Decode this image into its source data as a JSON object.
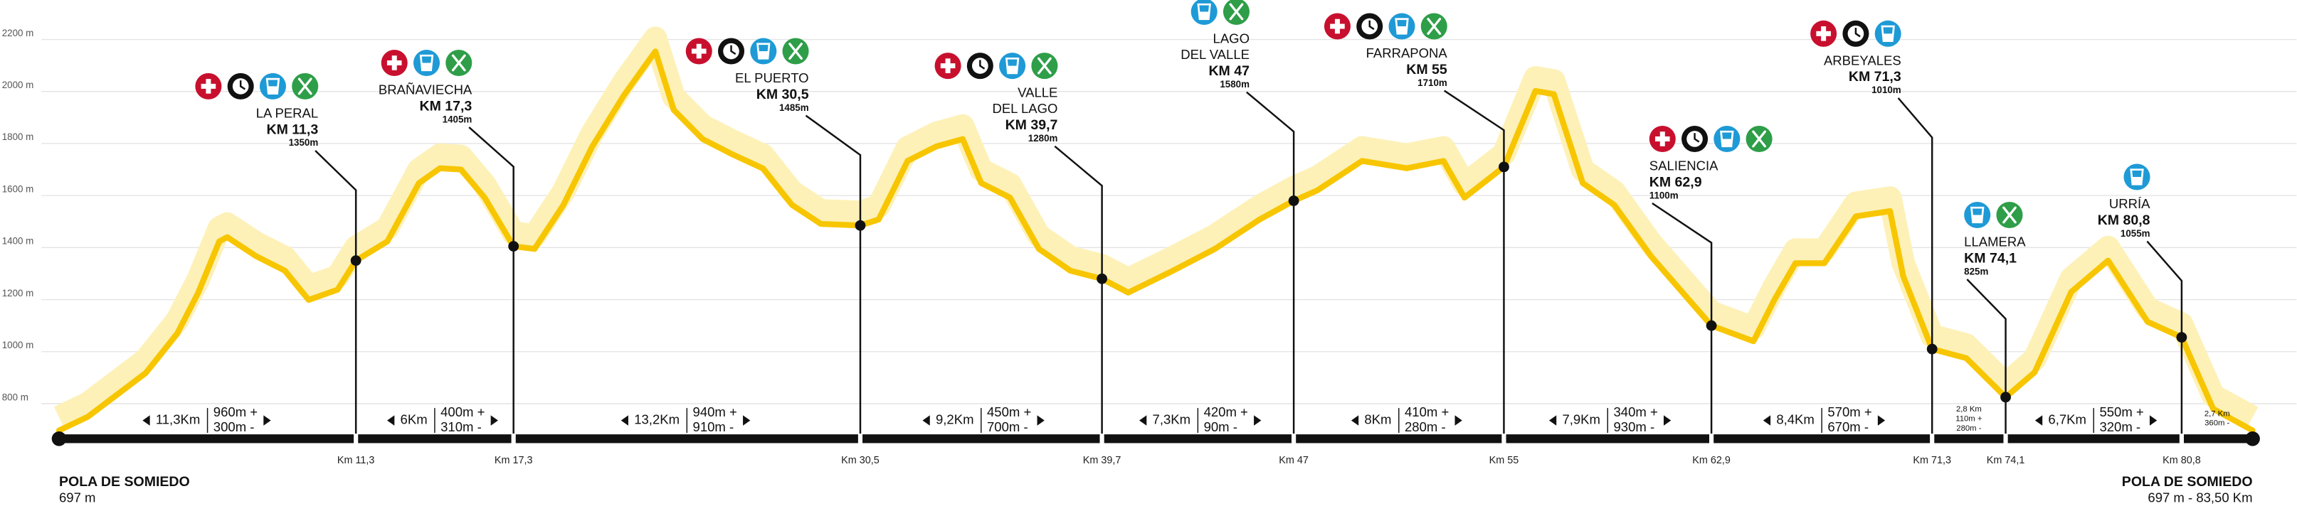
{
  "chart_data": {
    "type": "line",
    "x": [
      0,
      1.1,
      2.2,
      3.3,
      4.5,
      5.3,
      6.1,
      6.4,
      7.5,
      8.6,
      9.5,
      10.6,
      11.3,
      12.5,
      13.7,
      14.5,
      15.3,
      16.2,
      17.3,
      18.1,
      19.2,
      20.3,
      21.5,
      22.3,
      22.7,
      23.4,
      24.5,
      25.6,
      26.8,
      27.9,
      29.0,
      30.5,
      31.2,
      32.3,
      33.4,
      34.4,
      35.1,
      36.2,
      37.3,
      38.5,
      39.7,
      40.7,
      42.4,
      44.0,
      45.7,
      47,
      47.9,
      49.6,
      51.3,
      52.7,
      53.5,
      55,
      56.2,
      56.9,
      58,
      59.2,
      60.6,
      62.9,
      64.5,
      65.3,
      66.1,
      67.2,
      68.4,
      69.7,
      70.2,
      71.3,
      72.6,
      74.1,
      75.2,
      76.6,
      78.0,
      79.5,
      80.8,
      82.0,
      83.5
    ],
    "values": [
      697,
      750,
      834,
      918,
      1070,
      1227,
      1424,
      1440,
      1367,
      1311,
      1199,
      1238,
      1350,
      1424,
      1648,
      1705,
      1700,
      1592,
      1405,
      1395,
      1564,
      1789,
      1985,
      2098,
      2154,
      1929,
      1817,
      1760,
      1704,
      1564,
      1491,
      1485,
      1508,
      1733,
      1789,
      1817,
      1648,
      1592,
      1395,
      1311,
      1280,
      1227,
      1311,
      1395,
      1508,
      1580,
      1620,
      1733,
      1705,
      1733,
      1592,
      1710,
      2002,
      1990,
      1648,
      1564,
      1367,
      1100,
      1040,
      1200,
      1340,
      1340,
      1520,
      1540,
      1290,
      1010,
      975,
      825,
      920,
      1230,
      1350,
      1115,
      1055,
      780,
      697
    ],
    "color": "#f7c600",
    "band_color": "#fdf1b8",
    "xlim": [
      0,
      83.5
    ],
    "ylim": [
      650,
      2250
    ],
    "yticks": [
      {
        "value": 800,
        "label": "800 m"
      },
      {
        "value": 1000,
        "label": "1000 m"
      },
      {
        "value": 1200,
        "label": "1200 m"
      },
      {
        "value": 1400,
        "label": "1400 m"
      },
      {
        "value": 1600,
        "label": "1600 m"
      },
      {
        "value": 1800,
        "label": "1800 m"
      },
      {
        "value": 2000,
        "label": "2000 m"
      },
      {
        "value": 2200,
        "label": "2200 m"
      }
    ],
    "grid": true,
    "checkpoints": {
      "names": [
        [
          "LA PERAL"
        ],
        [
          "BRAÑAVIECHA"
        ],
        [
          "EL PUERTO"
        ],
        [
          "VALLE",
          "DEL LAGO"
        ],
        [
          "LAGO",
          "DEL VALLE"
        ],
        [
          "FARRAPONA"
        ],
        [
          "SALIENCIA"
        ],
        [
          "ARBEYALES"
        ],
        [
          "LLAMERA"
        ],
        [
          "URRÍA"
        ]
      ],
      "km": [
        11.3,
        17.3,
        30.5,
        39.7,
        47,
        55,
        62.9,
        71.3,
        74.1,
        80.8
      ],
      "km_labels": [
        "KM 11,3",
        "KM 17,3",
        "KM 30,5",
        "KM 39,7",
        "KM 47",
        "KM 55",
        "KM 62,9",
        "KM 71,3",
        "KM 74,1",
        "KM 80,8"
      ],
      "elevations": [
        1350,
        1405,
        1485,
        1280,
        1580,
        1710,
        1100,
        1010,
        825,
        1055
      ],
      "elevation_labels": [
        "1350m",
        "1405m",
        "1485m",
        "1280m",
        "1580m",
        "1710m",
        "1100m",
        "1010m",
        "825m",
        "1055m"
      ],
      "axis_labels": [
        "Km 11,3",
        "Km 17,3",
        "Km 30,5",
        "Km 39,7",
        "Km 47",
        "Km 55",
        "Km 62,9",
        "Km 71,3",
        "Km 74,1",
        "Km 80,8"
      ]
    },
    "segments": [
      {
        "distance": "11,3Km",
        "ascent": "960m +",
        "descent": "300m -"
      },
      {
        "distance": "6Km",
        "ascent": "400m +",
        "descent": "310m -"
      },
      {
        "distance": "13,2Km",
        "ascent": "940m +",
        "descent": "910m -"
      },
      {
        "distance": "9,2Km",
        "ascent": "450m +",
        "descent": "700m -"
      },
      {
        "distance": "7,3Km",
        "ascent": "420m +",
        "descent": "90m -"
      },
      {
        "distance": "8Km",
        "ascent": "410m +",
        "descent": "280m -"
      },
      {
        "distance": "7,9Km",
        "ascent": "340m +",
        "descent": "930m -"
      },
      {
        "distance": "8,4Km",
        "ascent": "570m +",
        "descent": "670m -"
      },
      {
        "distance": "2,8 Km",
        "ascent": "110m +",
        "descent": "280m -"
      },
      {
        "distance": "6,7Km",
        "ascent": "550m +",
        "descent": "320m -"
      },
      {
        "distance": "2,7 Km",
        "descent": "360m -"
      }
    ],
    "start": {
      "name": "POLA DE SOMIEDO",
      "label": "697 m"
    },
    "finish": {
      "name": "POLA DE SOMIEDO",
      "label": "697 m - 83,50 Km"
    }
  }
}
